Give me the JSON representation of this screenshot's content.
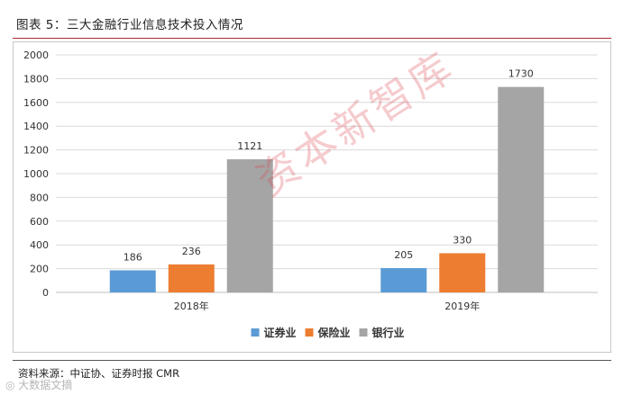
{
  "figure": {
    "title": "图表 5：三大金融行业信息技术投入情况",
    "source": "资料来源：中证协、证券时报 CMR",
    "watermark": "资本新智库",
    "logo_text": "◎ 大数据文摘"
  },
  "chart_data": {
    "type": "bar",
    "categories": [
      "2018年",
      "2019年"
    ],
    "series": [
      {
        "name": "证券业",
        "values": [
          186,
          205
        ],
        "color": "#5b9bd5"
      },
      {
        "name": "保险业",
        "values": [
          236,
          330
        ],
        "color": "#ed7d31"
      },
      {
        "name": "银行业",
        "values": [
          1121,
          1730
        ],
        "color": "#a5a5a5"
      }
    ],
    "title": "",
    "xlabel": "",
    "ylabel": "",
    "ylim": [
      0,
      2000
    ],
    "yticks": [
      0,
      200,
      400,
      600,
      800,
      1000,
      1200,
      1400,
      1600,
      1800,
      2000
    ],
    "grid": true,
    "legend_position": "bottom",
    "data_labels": true
  }
}
